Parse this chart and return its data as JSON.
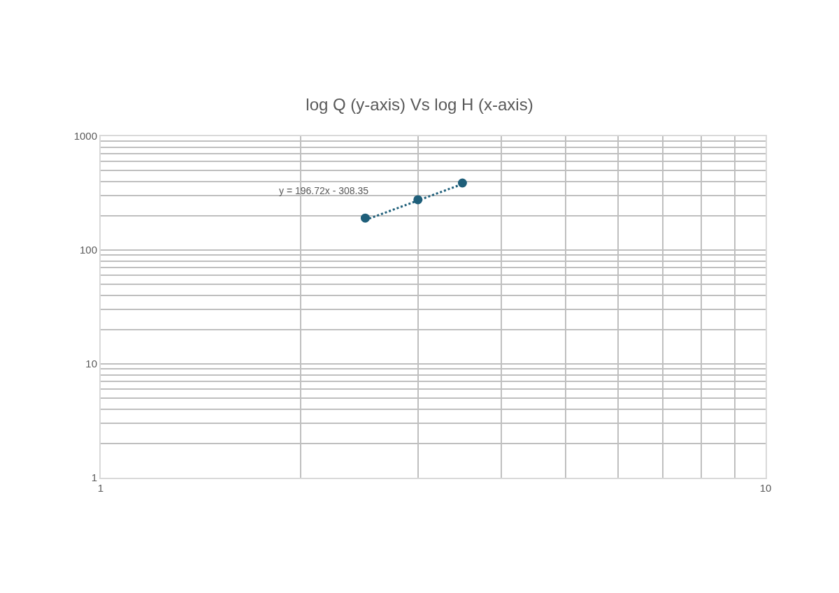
{
  "chart_data": {
    "type": "scatter",
    "title": "log Q (y-axis) Vs log H (x-axis)",
    "log": "xy",
    "grid": true,
    "marker": "circle",
    "series": [
      {
        "color": "#1f5f7a",
        "x": [
          2.5,
          3,
          3.5
        ],
        "values": [
          191,
          277,
          388
        ]
      },
      {
        "type": "line",
        "color": "#1f5f7a",
        "line_style": "dotted",
        "marker": "none",
        "x": [
          2.5,
          3.5
        ],
        "values": [
          183.45,
          380.17
        ]
      }
    ],
    "annotations": [
      "y = 196.72x - 308.35"
    ],
    "xlim": [
      1,
      10
    ],
    "ylim": [
      1,
      1000
    ],
    "xticks": [
      1,
      {
        "value": 2,
        "label": null
      },
      {
        "value": 3,
        "label": null
      },
      {
        "value": 4,
        "label": null
      },
      {
        "value": 5,
        "label": null
      },
      {
        "value": 6,
        "label": null
      },
      {
        "value": 7,
        "label": null
      },
      {
        "value": 8,
        "label": null
      },
      {
        "value": 9,
        "label": null
      },
      10
    ],
    "yticks": [
      1,
      {
        "value": 2,
        "label": null
      },
      {
        "value": 3,
        "label": null
      },
      {
        "value": 4,
        "label": null
      },
      {
        "value": 5,
        "label": null
      },
      {
        "value": 6,
        "label": null
      },
      {
        "value": 7,
        "label": null
      },
      {
        "value": 8,
        "label": null
      },
      {
        "value": 9,
        "label": null
      },
      10,
      {
        "value": 20,
        "label": null
      },
      {
        "value": 30,
        "label": null
      },
      {
        "value": 40,
        "label": null
      },
      {
        "value": 50,
        "label": null
      },
      {
        "value": 60,
        "label": null
      },
      {
        "value": 70,
        "label": null
      },
      {
        "value": 80,
        "label": null
      },
      {
        "value": 90,
        "label": null
      },
      100,
      {
        "value": 200,
        "label": null
      },
      {
        "value": 300,
        "label": null
      },
      {
        "value": 400,
        "label": null
      },
      {
        "value": 500,
        "label": null
      },
      {
        "value": 600,
        "label": null
      },
      {
        "value": 700,
        "label": null
      },
      {
        "value": 800,
        "label": null
      },
      {
        "value": 900,
        "label": null
      },
      1000
    ]
  }
}
